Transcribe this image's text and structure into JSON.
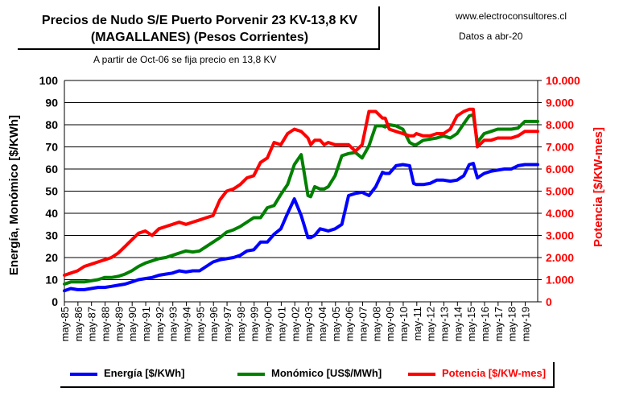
{
  "header": {
    "title_line1": "Precios de Nudo S/E Puerto Porvenir 23 KV-13,8 KV",
    "title_line2": "(MAGALLANES) (Pesos Corrientes)",
    "website": "www.electroconsultores.cl",
    "date_note": "Datos a abr-20",
    "subtitle": "A partir de Oct-06 se fija precio en 13,8 KV"
  },
  "colors": {
    "energia": "#0000ff",
    "monomico": "#008000",
    "potencia": "#ff0000",
    "axis_right": "#ff0000"
  },
  "chart_data": {
    "type": "line",
    "xlabel": "",
    "ylabel": "Energía, Monómico [$/KWh]",
    "ylabel_right": "Potencia [$/KW-mes]",
    "ylim": [
      0,
      100
    ],
    "ylim_right": [
      0,
      10000
    ],
    "xlim": [
      1985.33,
      2020.25
    ],
    "y_ticks": [
      "0",
      "10",
      "20",
      "30",
      "40",
      "50",
      "60",
      "70",
      "80",
      "90",
      "100"
    ],
    "y_right_ticks": [
      "0",
      "1.000",
      "2.000",
      "3.000",
      "4.000",
      "5.000",
      "6.000",
      "7.000",
      "8.000",
      "9.000",
      "10.000"
    ],
    "x_ticks": [
      "may-85",
      "may-86",
      "may-87",
      "may-88",
      "may-89",
      "may-90",
      "may-91",
      "may-92",
      "may-93",
      "may-94",
      "may-95",
      "may-96",
      "may-97",
      "may-98",
      "may-99",
      "may-00",
      "may-01",
      "may-02",
      "may-03",
      "may-04",
      "may-05",
      "may-06",
      "may-07",
      "may-08",
      "may-09",
      "may-10",
      "may-11",
      "may-12",
      "may-13",
      "may-14",
      "may-15",
      "may-16",
      "may-17",
      "may-18",
      "may-19"
    ],
    "legend_position": "bottom",
    "grid": true,
    "series": [
      {
        "name": "Energía [$/KWh]",
        "axis": "left",
        "x": [
          1985.33,
          1985.8,
          1986.3,
          1986.8,
          1987.3,
          1987.8,
          1988.3,
          1988.8,
          1989.3,
          1989.8,
          1990.3,
          1990.8,
          1991.3,
          1991.8,
          1992.3,
          1992.8,
          1993.3,
          1993.8,
          1994.3,
          1994.8,
          1995.3,
          1995.8,
          1996.3,
          1996.8,
          1997.3,
          1997.8,
          1998.3,
          1998.8,
          1999.3,
          1999.8,
          2000.3,
          2000.8,
          2001.3,
          2001.8,
          2002.3,
          2002.8,
          2003.3,
          2003.5,
          2003.8,
          2004.2,
          2004.5,
          2004.8,
          2005.3,
          2005.8,
          2006.3,
          2006.8,
          2007.3,
          2007.8,
          2008.3,
          2008.8,
          2009.0,
          2009.3,
          2009.8,
          2010.3,
          2010.8,
          2011.1,
          2011.3,
          2011.8,
          2012.3,
          2012.8,
          2013.3,
          2013.8,
          2014.3,
          2014.8,
          2015.2,
          2015.5,
          2015.8,
          2016.3,
          2016.8,
          2017.3,
          2017.8,
          2018.3,
          2018.8,
          2019.3,
          2019.8,
          2020.25
        ],
        "values": [
          5,
          6,
          5.5,
          5.5,
          6,
          6.5,
          6.5,
          7,
          7.5,
          8,
          9,
          10,
          10.5,
          11,
          12,
          12.5,
          13,
          14,
          13.5,
          14,
          14,
          16,
          18,
          19,
          19.5,
          20,
          21,
          23,
          23.5,
          27,
          27,
          30.5,
          33,
          40,
          46.5,
          39,
          29,
          29,
          30,
          33,
          32.5,
          32,
          33,
          35,
          48,
          49,
          49.5,
          48,
          52,
          58.5,
          58,
          58,
          61.5,
          62,
          61.5,
          53.5,
          53,
          53,
          53.5,
          55,
          55,
          54.5,
          55,
          57,
          62,
          62.5,
          56,
          58,
          59,
          59.5,
          60,
          60,
          61.5,
          62,
          62,
          62
        ]
      },
      {
        "name": "Monómico [US$/MWh]",
        "axis": "left",
        "x": [
          1985.33,
          1985.8,
          1986.3,
          1986.8,
          1987.3,
          1987.8,
          1988.3,
          1988.8,
          1989.3,
          1989.8,
          1990.3,
          1990.8,
          1991.3,
          1991.8,
          1992.3,
          1992.8,
          1993.3,
          1993.8,
          1994.3,
          1994.8,
          1995.3,
          1995.8,
          1996.3,
          1996.8,
          1997.3,
          1997.8,
          1998.3,
          1998.8,
          1999.3,
          1999.8,
          2000.3,
          2000.8,
          2001.3,
          2001.8,
          2002.3,
          2002.8,
          2003.3,
          2003.5,
          2003.8,
          2004.2,
          2004.5,
          2004.8,
          2005.3,
          2005.8,
          2006.3,
          2006.8,
          2007.3,
          2007.8,
          2008.3,
          2008.8,
          2009.0,
          2009.3,
          2009.8,
          2010.3,
          2010.8,
          2011.1,
          2011.3,
          2011.8,
          2012.3,
          2012.8,
          2013.3,
          2013.8,
          2014.3,
          2014.8,
          2015.2,
          2015.5,
          2015.8,
          2016.3,
          2016.8,
          2017.3,
          2017.8,
          2018.3,
          2018.8,
          2019.3,
          2019.8,
          2020.25
        ],
        "values": [
          8,
          9,
          9,
          9,
          9.5,
          10,
          11,
          11,
          11.5,
          12.5,
          14,
          16,
          17.5,
          18.5,
          19.5,
          20,
          21,
          22,
          23,
          22.5,
          23,
          25,
          27,
          29,
          31.5,
          32.5,
          34,
          36,
          38,
          38,
          42.5,
          43.5,
          48.5,
          53,
          62,
          66.5,
          48,
          47.5,
          52,
          51,
          51,
          52,
          57,
          66,
          67,
          67.5,
          65,
          70.5,
          79.5,
          79.5,
          79,
          80,
          79.5,
          78,
          72,
          71,
          71,
          73,
          73.5,
          74,
          75,
          74,
          76,
          80.5,
          84,
          84.5,
          72,
          76,
          77,
          78,
          78,
          78,
          78.5,
          81.5,
          81.5,
          81.5
        ]
      },
      {
        "name": "Potencia [$/KW-mes]",
        "axis": "right",
        "x": [
          1985.33,
          1985.8,
          1986.3,
          1986.8,
          1987.3,
          1987.8,
          1988.3,
          1988.8,
          1989.3,
          1989.8,
          1990.3,
          1990.8,
          1991.3,
          1991.8,
          1992.3,
          1992.8,
          1993.3,
          1993.8,
          1994.3,
          1994.8,
          1995.3,
          1995.8,
          1996.3,
          1996.8,
          1997.3,
          1997.8,
          1998.3,
          1998.8,
          1999.3,
          1999.8,
          2000.3,
          2000.8,
          2001.3,
          2001.8,
          2002.3,
          2002.8,
          2003.3,
          2003.5,
          2003.8,
          2004.2,
          2004.5,
          2004.8,
          2005.3,
          2005.8,
          2006.3,
          2006.8,
          2007.3,
          2007.8,
          2008.3,
          2008.8,
          2009.0,
          2009.3,
          2009.8,
          2010.3,
          2010.8,
          2011.1,
          2011.3,
          2011.8,
          2012.3,
          2012.8,
          2013.3,
          2013.8,
          2014.3,
          2014.8,
          2015.2,
          2015.5,
          2015.8,
          2016.3,
          2016.8,
          2017.3,
          2017.8,
          2018.3,
          2018.8,
          2019.3,
          2019.8,
          2020.25
        ],
        "values": [
          1200,
          1300,
          1400,
          1600,
          1700,
          1800,
          1900,
          2000,
          2200,
          2500,
          2800,
          3100,
          3200,
          3000,
          3300,
          3400,
          3500,
          3600,
          3500,
          3600,
          3700,
          3800,
          3900,
          4600,
          5000,
          5100,
          5300,
          5600,
          5700,
          6300,
          6500,
          7200,
          7100,
          7600,
          7800,
          7700,
          7400,
          7100,
          7300,
          7300,
          7100,
          7200,
          7100,
          7100,
          7100,
          6800,
          7100,
          8600,
          8600,
          8300,
          8300,
          7800,
          7700,
          7600,
          7500,
          7500,
          7600,
          7500,
          7500,
          7600,
          7600,
          7800,
          8400,
          8600,
          8700,
          8700,
          7000,
          7300,
          7300,
          7400,
          7400,
          7400,
          7500,
          7700,
          7700,
          7700
        ]
      }
    ]
  }
}
